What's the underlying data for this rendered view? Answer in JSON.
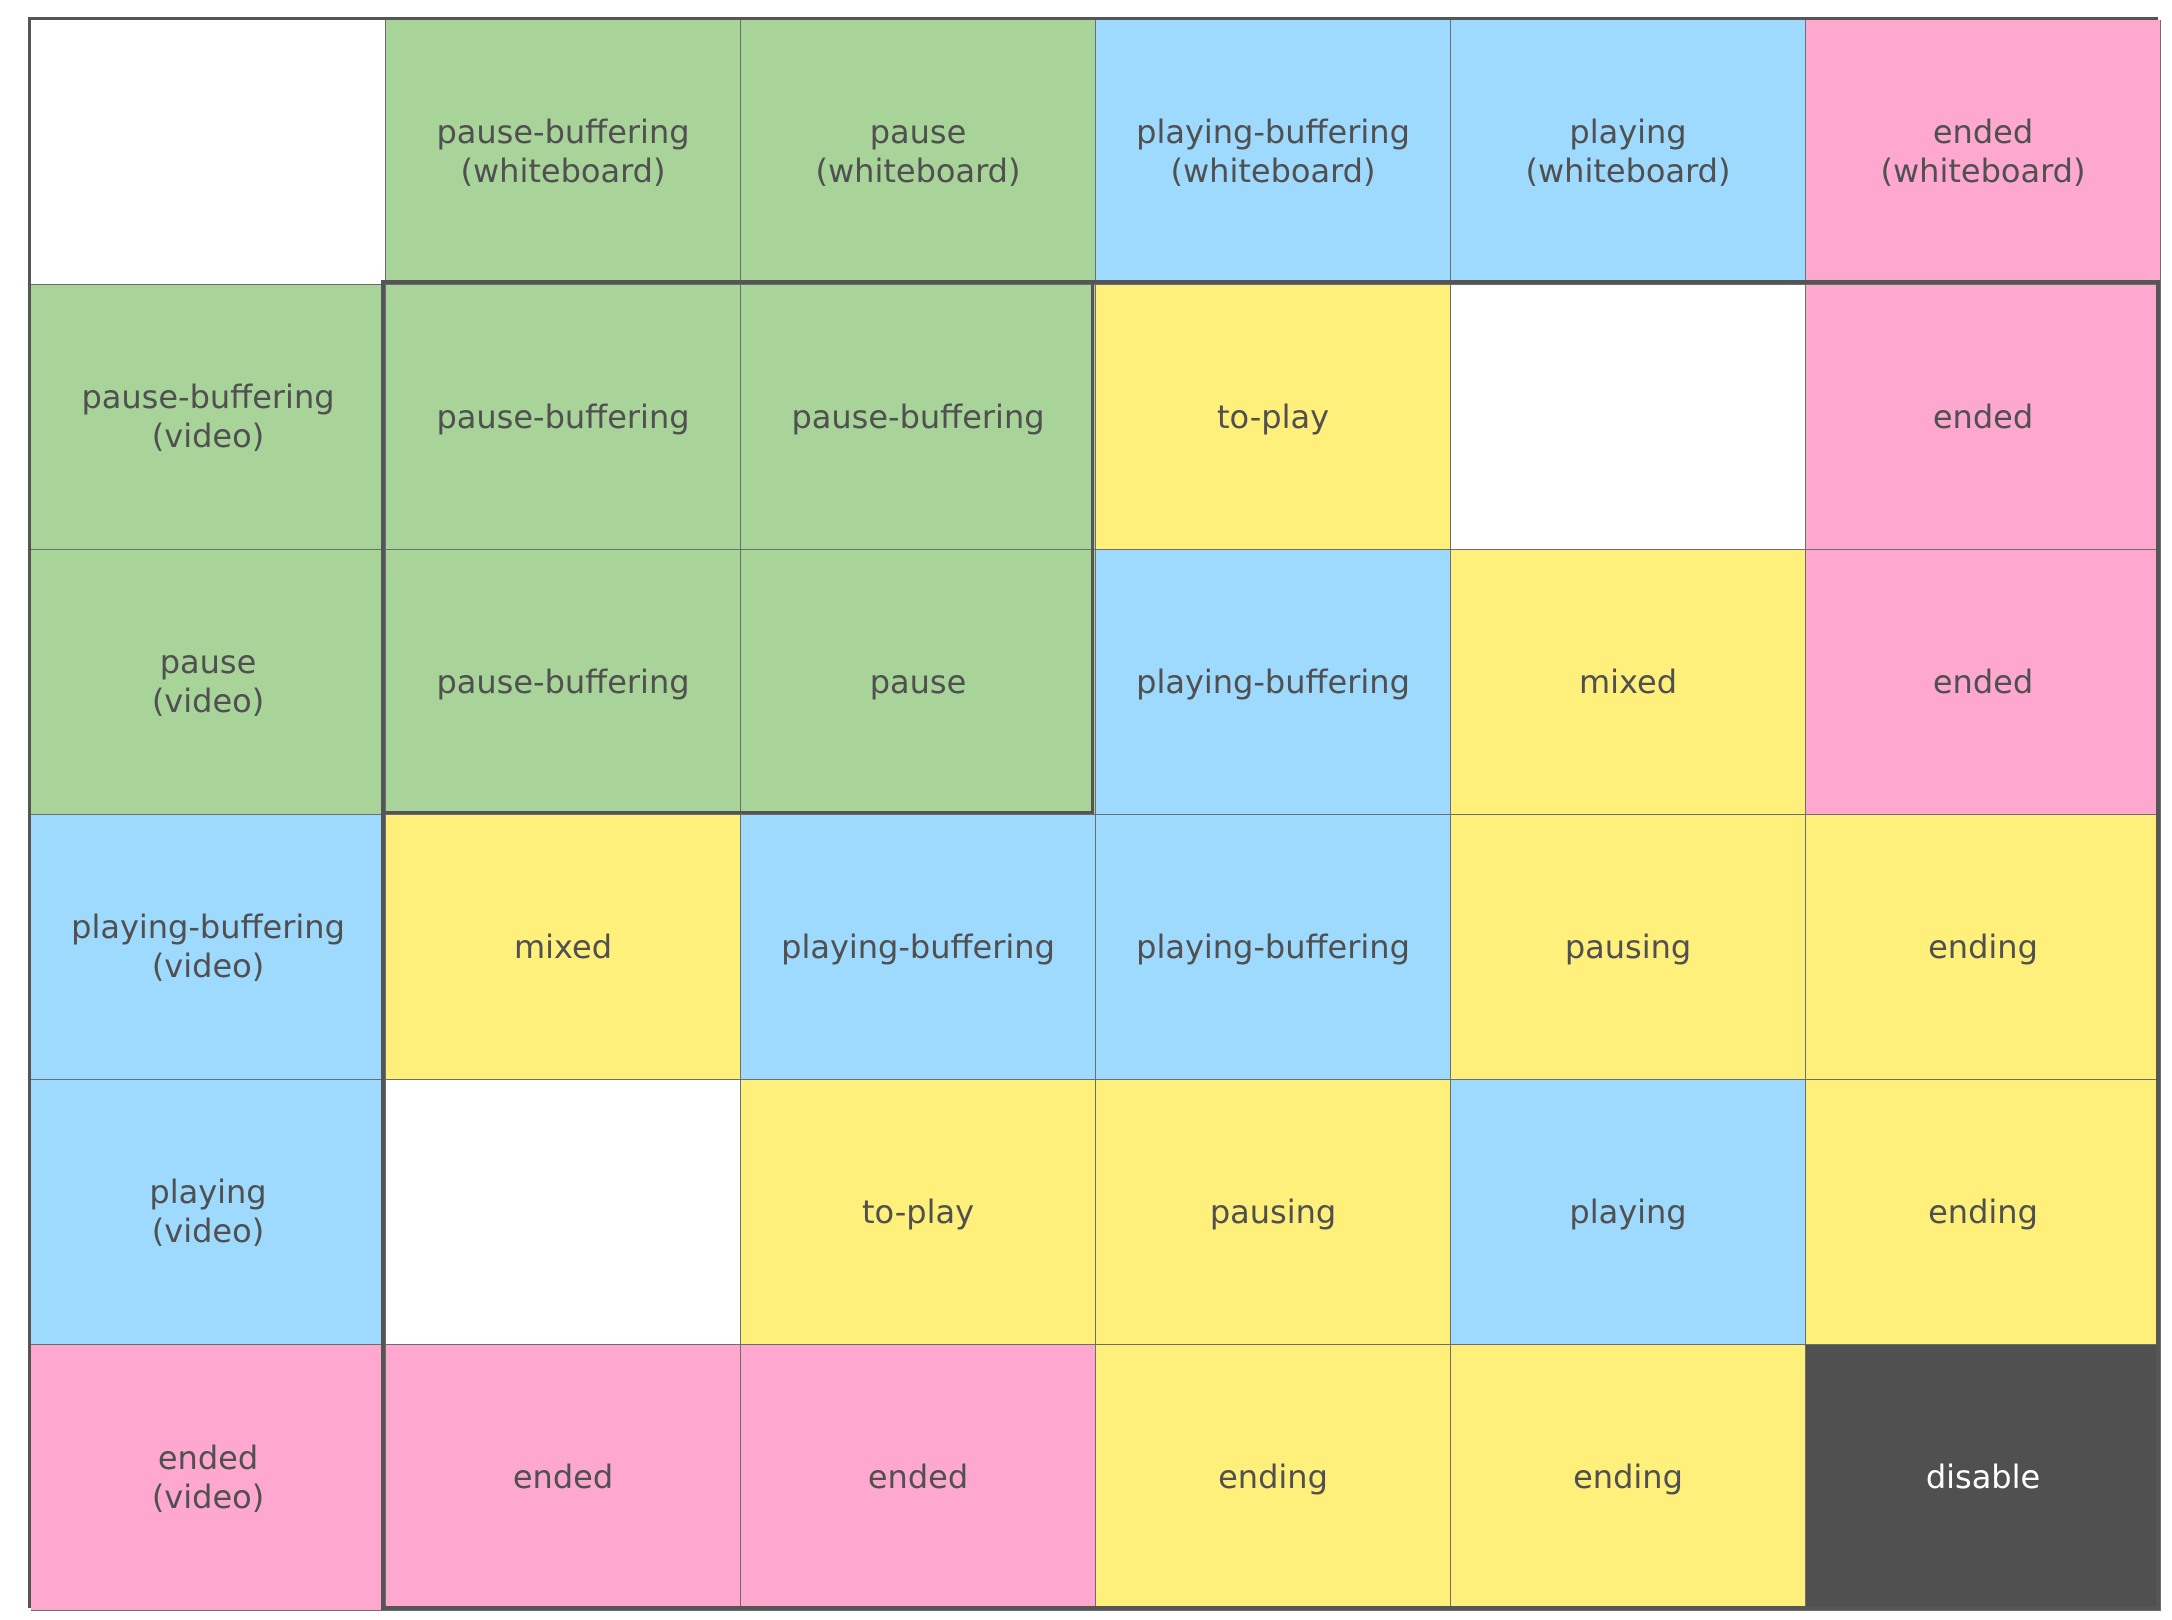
{
  "rows": [
    [
      {
        "text": "",
        "color": "white"
      },
      {
        "text": "pause-buffering\n(whiteboard)",
        "color": "green"
      },
      {
        "text": "pause\n(whiteboard)",
        "color": "green"
      },
      {
        "text": "playing-buffering\n(whiteboard)",
        "color": "blue"
      },
      {
        "text": "playing\n(whiteboard)",
        "color": "blue"
      },
      {
        "text": "ended\n(whiteboard)",
        "color": "pink"
      }
    ],
    [
      {
        "text": "pause-buffering\n(video)",
        "color": "green"
      },
      {
        "text": "pause-buffering",
        "color": "green"
      },
      {
        "text": "pause-buffering",
        "color": "green"
      },
      {
        "text": "to-play",
        "color": "yellow"
      },
      {
        "text": "",
        "color": "white"
      },
      {
        "text": "ended",
        "color": "pink"
      }
    ],
    [
      {
        "text": "pause\n(video)",
        "color": "green"
      },
      {
        "text": "pause-buffering",
        "color": "green"
      },
      {
        "text": "pause",
        "color": "green"
      },
      {
        "text": "playing-buffering",
        "color": "blue"
      },
      {
        "text": "mixed",
        "color": "yellow"
      },
      {
        "text": "ended",
        "color": "pink"
      }
    ],
    [
      {
        "text": "playing-buffering\n(video)",
        "color": "blue"
      },
      {
        "text": "mixed",
        "color": "yellow"
      },
      {
        "text": "playing-buffering",
        "color": "blue"
      },
      {
        "text": "playing-buffering",
        "color": "blue"
      },
      {
        "text": "pausing",
        "color": "yellow"
      },
      {
        "text": "ending",
        "color": "yellow"
      }
    ],
    [
      {
        "text": "playing\n(video)",
        "color": "blue"
      },
      {
        "text": "",
        "color": "white"
      },
      {
        "text": "to-play",
        "color": "yellow"
      },
      {
        "text": "pausing",
        "color": "yellow"
      },
      {
        "text": "playing",
        "color": "blue"
      },
      {
        "text": "ending",
        "color": "yellow"
      }
    ],
    [
      {
        "text": "ended\n(video)",
        "color": "pink"
      },
      {
        "text": "ended",
        "color": "pink"
      },
      {
        "text": "ended",
        "color": "pink"
      },
      {
        "text": "ending",
        "color": "yellow"
      },
      {
        "text": "ending",
        "color": "yellow"
      },
      {
        "text": "disable",
        "color": "dark"
      }
    ]
  ],
  "palette": {
    "green": "#a8d49a",
    "blue": "#9ed9fe",
    "pink": "#fea8d0",
    "yellow": "#fef07a",
    "white": "#ffffff",
    "dark": "#505050"
  }
}
